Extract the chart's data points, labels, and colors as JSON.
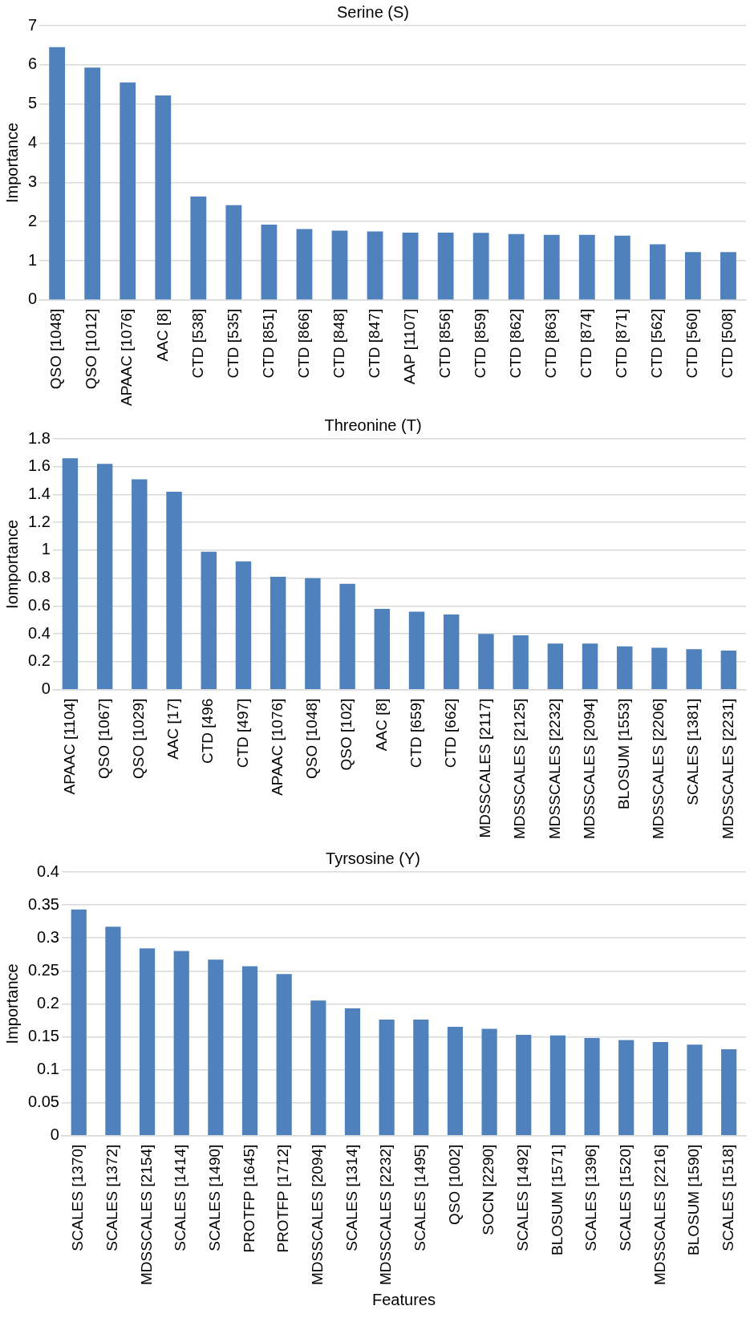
{
  "chart_data": [
    {
      "type": "bar",
      "title": "Serine (S)",
      "ylabel": "Importance",
      "color": "#4f81bd",
      "grid": "y",
      "categories": [
        "QSO [1048]",
        "QSO [1012]",
        "APAAC [1076]",
        "AAC [8]",
        "CTD [538]",
        "CTD [535]",
        "CTD [851]",
        "CTD [866]",
        "CTD [848]",
        "CTD [847]",
        "AAP [1107]",
        "CTD [856]",
        "CTD [859]",
        "CTD [862]",
        "CTD [863]",
        "CTD [874]",
        "CTD [871]",
        "CTD [562]",
        "CTD [560]",
        "CTD [508]"
      ],
      "values": [
        6.45,
        5.93,
        5.55,
        5.22,
        2.64,
        2.42,
        1.92,
        1.81,
        1.77,
        1.75,
        1.72,
        1.72,
        1.71,
        1.68,
        1.66,
        1.66,
        1.64,
        1.42,
        1.22,
        1.22
      ],
      "ylim": [
        0,
        7
      ],
      "yticks": [
        0,
        1,
        2,
        3,
        4,
        5,
        6,
        7
      ]
    },
    {
      "type": "bar",
      "title": "Threonine (T)",
      "ylabel": "Iomportance",
      "color": "#4f81bd",
      "grid": "y",
      "categories": [
        "APAAC [1104]",
        "QSO [1067]",
        "QSO [1029]",
        "AAC [17]",
        "CTD [496",
        "CTD [497]",
        "APAAC [1076]",
        "QSO [1048]",
        "QSO [102]",
        "AAC [8]",
        "CTD [659]",
        "CTD [662]",
        "MDSSCALES [2117]",
        "MDSSCALES [2125]",
        "MDSSCALES [2232]",
        "MDSSCALES [2094]",
        "BLOSUM [1553]",
        "MDSSCALES [2206]",
        "SCALES [1381]",
        "MDSSCALES [2231]"
      ],
      "values": [
        1.66,
        1.62,
        1.51,
        1.42,
        0.99,
        0.92,
        0.81,
        0.8,
        0.76,
        0.58,
        0.56,
        0.54,
        0.4,
        0.39,
        0.33,
        0.33,
        0.31,
        0.3,
        0.29,
        0.28
      ],
      "ylim": [
        0,
        1.8
      ],
      "yticks": [
        0,
        0.2,
        0.4,
        0.6,
        0.8,
        1,
        1.2,
        1.4,
        1.6,
        1.8
      ]
    },
    {
      "type": "bar",
      "title": "Tyrsosine (Y)",
      "ylabel": "Importance",
      "xlabel": "Features",
      "color": "#4f81bd",
      "grid": "y",
      "categories": [
        "SCALES [1370]",
        "SCALES [1372]",
        "MDSSCALES [2154]",
        "SCALES [1414]",
        "SCALES [1490]",
        "PROTFP [1645]",
        "PROTFP [1712]",
        "MDSSCALES [2094]",
        "SCALES [1314]",
        "MDSSCALES [2232]",
        "SCALES [1495]",
        "QSO [1002]",
        "SOCN [2290]",
        "SCALES [1492]",
        "BLOSUM [1571]",
        "SCALES [1396]",
        "SCALES [1520]",
        "MDSSCALES [2216]",
        "BLOSUM [1590]",
        "SCALES [1518]"
      ],
      "values": [
        0.343,
        0.317,
        0.284,
        0.28,
        0.267,
        0.257,
        0.245,
        0.205,
        0.193,
        0.176,
        0.176,
        0.165,
        0.162,
        0.153,
        0.152,
        0.148,
        0.145,
        0.142,
        0.138,
        0.131
      ],
      "ylim": [
        0,
        0.4
      ],
      "yticks": [
        0,
        0.05,
        0.1,
        0.15,
        0.2,
        0.25,
        0.3,
        0.35,
        0.4
      ]
    }
  ]
}
